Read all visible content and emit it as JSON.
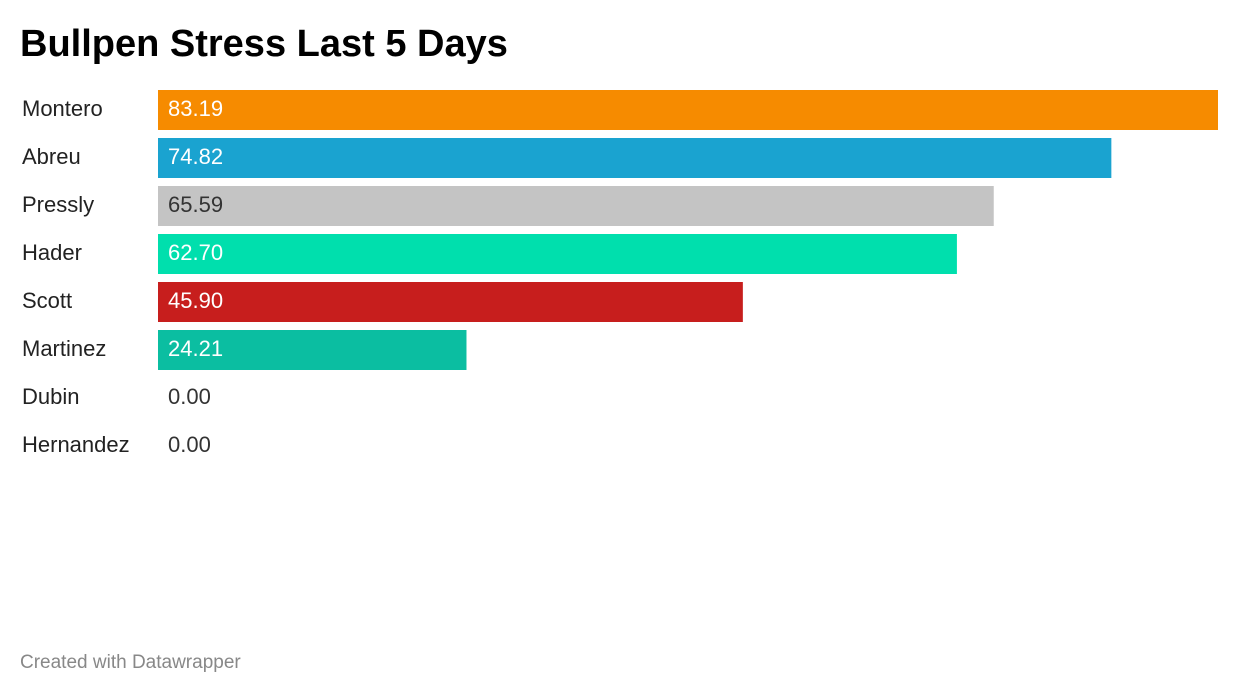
{
  "chart_data": {
    "type": "bar",
    "orientation": "horizontal",
    "title": "Bullpen Stress Last 5 Days",
    "categories": [
      "Montero",
      "Abreu",
      "Pressly",
      "Hader",
      "Scott",
      "Martinez",
      "Dubin",
      "Hernandez"
    ],
    "values": [
      83.19,
      74.82,
      65.59,
      62.7,
      45.9,
      24.21,
      0,
      0
    ],
    "value_labels": [
      "83.19",
      "74.82",
      "65.59",
      "62.70",
      "45.90",
      "24.21",
      "0.00",
      "0.00"
    ],
    "colors": [
      "#f68b00",
      "#1aa3d0",
      "#c4c4c4",
      "#00dfad",
      "#c71e1d",
      "#0bbea1",
      "#0bbea1",
      "#0bbea1"
    ],
    "footer": "Created with Datawrapper"
  }
}
